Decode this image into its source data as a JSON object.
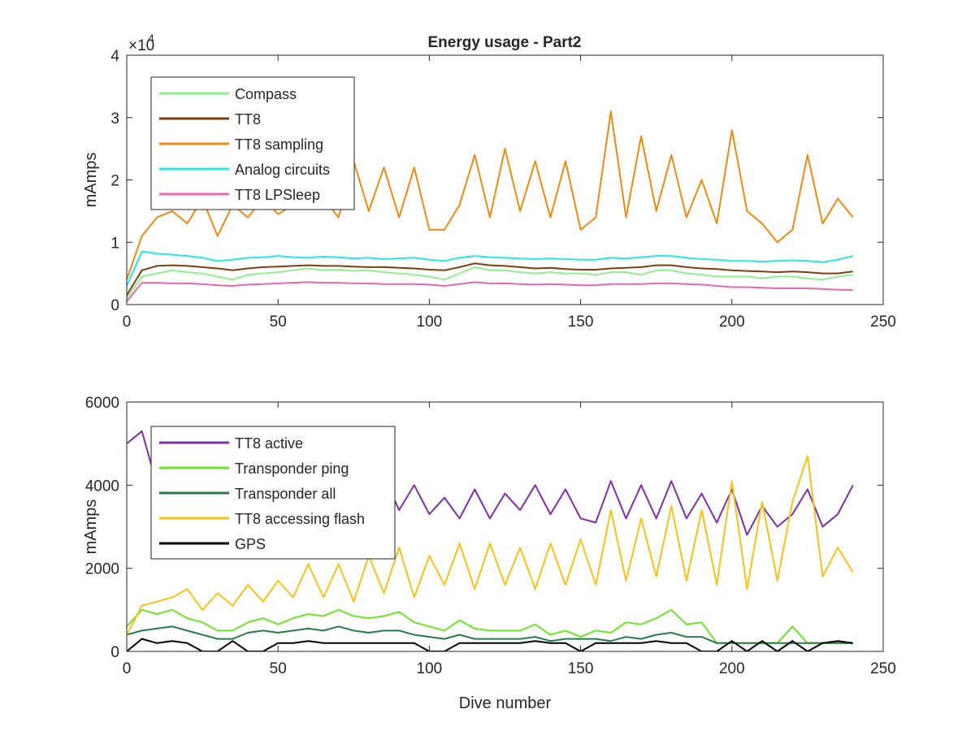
{
  "figure": {
    "title": "Energy usage - Part2"
  },
  "chart_data": [
    {
      "type": "line",
      "title": "Energy usage - Part2",
      "xlabel": "",
      "ylabel": "mAmps",
      "xlim": [
        0,
        250
      ],
      "ylim": [
        0,
        40000
      ],
      "exponent_label": "×10",
      "exponent_power": "4",
      "xticks": [
        0,
        50,
        100,
        150,
        200,
        250
      ],
      "yticks": [
        0,
        10000,
        20000,
        30000,
        40000
      ],
      "ytick_labels": [
        "0",
        "1",
        "2",
        "3",
        "4"
      ],
      "grid": false,
      "legend": "top-left",
      "x": [
        0,
        5,
        10,
        15,
        20,
        25,
        30,
        35,
        40,
        45,
        50,
        55,
        60,
        65,
        70,
        75,
        80,
        85,
        90,
        95,
        100,
        105,
        110,
        115,
        120,
        125,
        130,
        135,
        140,
        145,
        150,
        155,
        160,
        165,
        170,
        175,
        180,
        185,
        190,
        195,
        200,
        205,
        210,
        215,
        220,
        225,
        230,
        235,
        240
      ],
      "series": [
        {
          "name": "Compass",
          "color": "#90ee90",
          "values": [
            1000,
            4500,
            5000,
            5500,
            5200,
            5000,
            4500,
            4000,
            4800,
            5000,
            5200,
            5500,
            5800,
            5500,
            5600,
            5400,
            5500,
            5200,
            5000,
            4800,
            4500,
            4000,
            5000,
            6000,
            5500,
            5500,
            5200,
            5000,
            5200,
            5000,
            5000,
            4800,
            5200,
            5200,
            4800,
            5500,
            5500,
            5000,
            4800,
            4500,
            4500,
            4500,
            4200,
            4500,
            4500,
            4200,
            4000,
            4500,
            4800
          ]
        },
        {
          "name": "TT8",
          "color": "#7b3f0f",
          "values": [
            1500,
            5500,
            6200,
            6300,
            6200,
            6000,
            5800,
            5500,
            5800,
            6000,
            6100,
            6200,
            6300,
            6200,
            6200,
            6100,
            6000,
            6000,
            5900,
            5800,
            5600,
            5500,
            6000,
            6600,
            6300,
            6200,
            6000,
            5800,
            5900,
            5700,
            5600,
            5600,
            5800,
            5900,
            6000,
            6300,
            6300,
            6000,
            5800,
            5700,
            5500,
            5400,
            5300,
            5200,
            5300,
            5200,
            5000,
            5000,
            5300
          ]
        },
        {
          "name": "TT8 sampling",
          "color": "#ed8a14",
          "values": [
            4000,
            11000,
            14000,
            15000,
            13000,
            17000,
            11000,
            16000,
            14000,
            17000,
            14500,
            16000,
            22000,
            17000,
            14000,
            23000,
            15000,
            22000,
            14000,
            22000,
            12000,
            12000,
            16000,
            24000,
            14000,
            25000,
            15000,
            23000,
            14000,
            23000,
            12000,
            14000,
            31000,
            14000,
            27000,
            15000,
            24000,
            14000,
            20000,
            13000,
            28000,
            15000,
            13000,
            10000,
            12000,
            24000,
            13000,
            17000,
            14000
          ]
        },
        {
          "name": "Analog circuits",
          "color": "#29e5e5",
          "values": [
            3000,
            8500,
            8200,
            8000,
            7800,
            7500,
            7000,
            7200,
            7500,
            7600,
            7800,
            7600,
            7500,
            7700,
            7600,
            7400,
            7500,
            7300,
            7400,
            7500,
            7200,
            7000,
            7500,
            7800,
            7600,
            7500,
            7400,
            7300,
            7400,
            7300,
            7200,
            7200,
            7500,
            7400,
            7600,
            7800,
            7800,
            7500,
            7300,
            7200,
            7000,
            7000,
            6900,
            7000,
            7100,
            7000,
            6800,
            7200,
            7800
          ]
        },
        {
          "name": "TT8 LPSleep",
          "color": "#e667b3",
          "values": [
            500,
            3500,
            3500,
            3400,
            3400,
            3300,
            3100,
            3000,
            3200,
            3300,
            3400,
            3500,
            3600,
            3500,
            3500,
            3400,
            3400,
            3300,
            3300,
            3300,
            3200,
            3000,
            3300,
            3600,
            3400,
            3400,
            3300,
            3200,
            3300,
            3200,
            3100,
            3100,
            3300,
            3300,
            3300,
            3400,
            3400,
            3300,
            3200,
            3000,
            2800,
            2800,
            2700,
            2600,
            2600,
            2600,
            2500,
            2400,
            2300
          ]
        }
      ]
    },
    {
      "type": "line",
      "title": "",
      "xlabel": "Dive number",
      "ylabel": "mAmps",
      "xlim": [
        0,
        250
      ],
      "ylim": [
        0,
        6000
      ],
      "xticks": [
        0,
        50,
        100,
        150,
        200,
        250
      ],
      "yticks": [
        0,
        2000,
        4000,
        6000
      ],
      "ytick_labels": [
        "0",
        "2000",
        "4000",
        "6000"
      ],
      "grid": false,
      "legend": "top-left",
      "x": [
        0,
        5,
        10,
        15,
        20,
        25,
        30,
        35,
        40,
        45,
        50,
        55,
        60,
        65,
        70,
        75,
        80,
        85,
        90,
        95,
        100,
        105,
        110,
        115,
        120,
        125,
        130,
        135,
        140,
        145,
        150,
        155,
        160,
        165,
        170,
        175,
        180,
        185,
        190,
        195,
        200,
        205,
        210,
        215,
        220,
        225,
        230,
        235,
        240
      ],
      "series": [
        {
          "name": "TT8 active",
          "color": "#7e2fa8",
          "values": [
            5000,
            5300,
            4000,
            4500,
            3800,
            4500,
            3600,
            4200,
            3500,
            4300,
            3600,
            4400,
            3800,
            4800,
            3700,
            4300,
            3500,
            4200,
            3400,
            4000,
            3300,
            3700,
            3200,
            3900,
            3200,
            3800,
            3400,
            4000,
            3300,
            3900,
            3200,
            3100,
            4100,
            3200,
            4000,
            3200,
            4100,
            3200,
            3800,
            3100,
            3900,
            2800,
            3500,
            3000,
            3300,
            3900,
            3000,
            3300,
            4000
          ]
        },
        {
          "name": "Transponder ping",
          "color": "#6de32a",
          "values": [
            600,
            1000,
            900,
            1000,
            800,
            700,
            500,
            500,
            700,
            800,
            650,
            800,
            900,
            850,
            1000,
            850,
            800,
            850,
            950,
            700,
            600,
            500,
            750,
            550,
            500,
            500,
            500,
            650,
            400,
            500,
            350,
            500,
            450,
            700,
            650,
            800,
            1000,
            650,
            700,
            200,
            200,
            200,
            200,
            200,
            600,
            200,
            200,
            200,
            200
          ]
        },
        {
          "name": "Transponder all",
          "color": "#2a7a4a",
          "values": [
            400,
            500,
            550,
            600,
            500,
            400,
            300,
            300,
            450,
            500,
            450,
            500,
            550,
            500,
            600,
            500,
            450,
            500,
            500,
            400,
            350,
            300,
            400,
            300,
            300,
            300,
            300,
            350,
            250,
            300,
            300,
            300,
            250,
            350,
            300,
            400,
            450,
            350,
            350,
            200,
            200,
            200,
            200,
            200,
            200,
            200,
            200,
            200,
            200
          ]
        },
        {
          "name": "TT8 accessing flash",
          "color": "#f7c218",
          "values": [
            400,
            1100,
            1200,
            1300,
            1500,
            1000,
            1400,
            1100,
            1600,
            1200,
            1700,
            1300,
            2100,
            1300,
            2100,
            1200,
            2300,
            1400,
            2500,
            1300,
            2300,
            1600,
            2600,
            1500,
            2600,
            1600,
            2500,
            1500,
            2600,
            1600,
            2700,
            1600,
            3400,
            1700,
            3200,
            1800,
            3500,
            1700,
            3400,
            1600,
            4100,
            1500,
            3600,
            1700,
            3600,
            4700,
            1800,
            2500,
            1900
          ]
        },
        {
          "name": "GPS",
          "color": "#000000",
          "values": [
            0,
            300,
            200,
            250,
            200,
            0,
            0,
            250,
            0,
            0,
            200,
            200,
            250,
            200,
            200,
            200,
            200,
            200,
            200,
            200,
            0,
            0,
            200,
            200,
            200,
            200,
            200,
            250,
            200,
            200,
            0,
            200,
            200,
            200,
            200,
            250,
            200,
            200,
            0,
            0,
            250,
            0,
            250,
            0,
            250,
            0,
            200,
            250,
            200
          ]
        }
      ]
    }
  ]
}
